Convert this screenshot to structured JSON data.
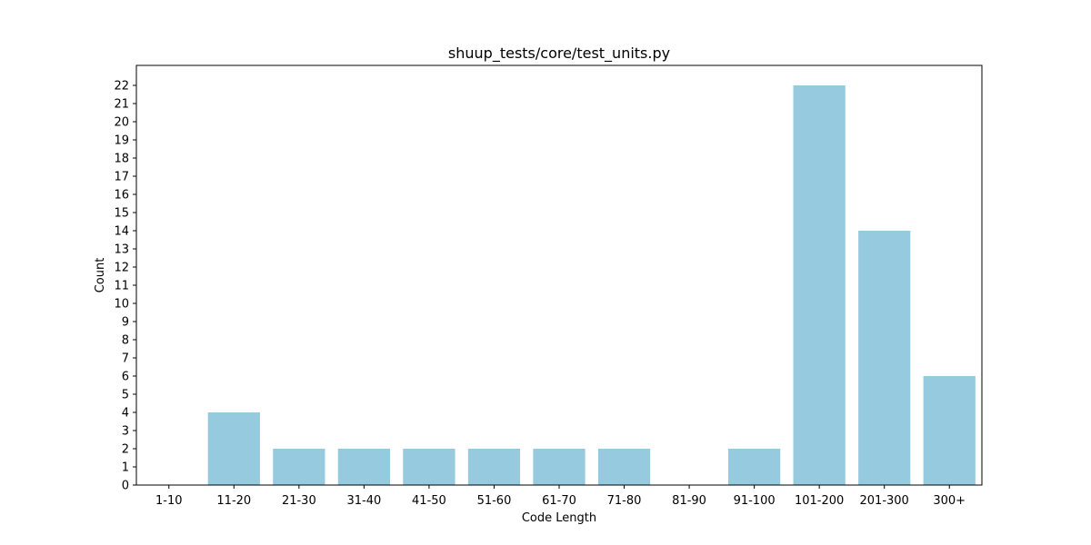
{
  "chart_data": {
    "type": "bar",
    "title": "shuup_tests/core/test_units.py",
    "xlabel": "Code Length",
    "ylabel": "Count",
    "categories": [
      "1-10",
      "11-20",
      "21-30",
      "31-40",
      "41-50",
      "51-60",
      "61-70",
      "71-80",
      "81-90",
      "91-100",
      "101-200",
      "201-300",
      "300+"
    ],
    "values": [
      0,
      4,
      2,
      2,
      2,
      2,
      2,
      2,
      0,
      2,
      22,
      14,
      6
    ],
    "ylim": [
      0,
      23.1
    ],
    "yticks": [
      0,
      1,
      2,
      3,
      4,
      5,
      6,
      7,
      8,
      9,
      10,
      11,
      12,
      13,
      14,
      15,
      16,
      17,
      18,
      19,
      20,
      21,
      22
    ],
    "grid": false,
    "legend": "none",
    "bar_color": "#96cade"
  }
}
